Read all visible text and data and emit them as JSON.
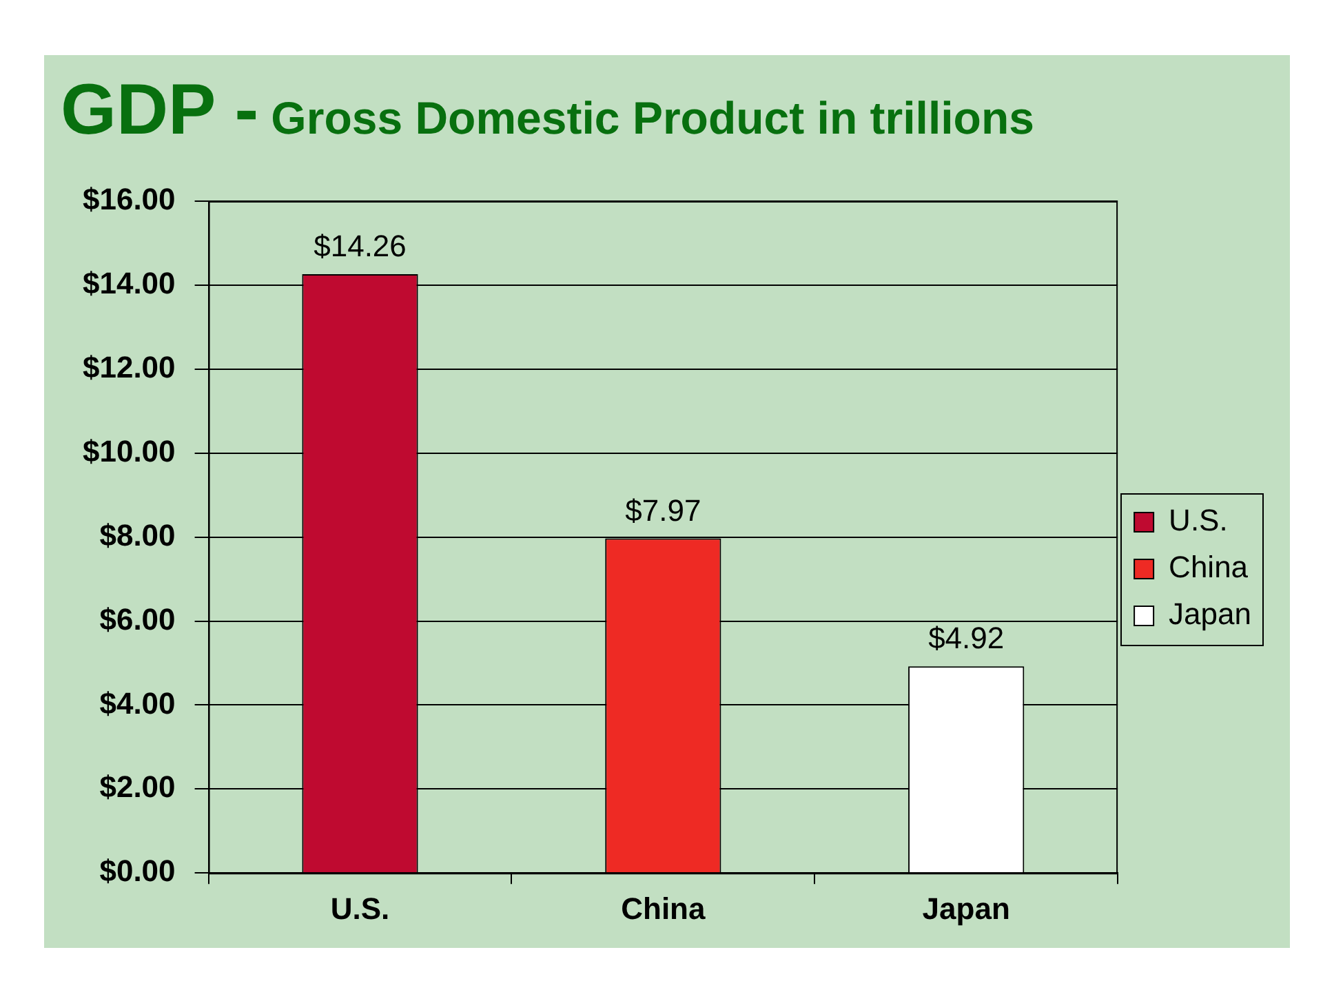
{
  "chart_data": {
    "type": "bar",
    "title": "GDP - Gross Domestic Product in trillions",
    "categories": [
      "U.S.",
      "China",
      "Japan"
    ],
    "series": [
      {
        "name": "U.S.",
        "color": "#bf0a30",
        "values": [
          14.26,
          null,
          null
        ],
        "value_labels": [
          "$14.26",
          null,
          null
        ]
      },
      {
        "name": "China",
        "color": "#ee2a24",
        "values": [
          null,
          7.97,
          null
        ],
        "value_labels": [
          null,
          "$7.97",
          null
        ]
      },
      {
        "name": "Japan",
        "color": "#ffffff",
        "values": [
          null,
          null,
          4.92
        ],
        "value_labels": [
          null,
          null,
          "$4.92"
        ]
      }
    ],
    "ylim": [
      0,
      16
    ],
    "yticks": [
      {
        "value": 0,
        "label": "$0.00"
      },
      {
        "value": 2,
        "label": "$2.00"
      },
      {
        "value": 4,
        "label": "$4.00"
      },
      {
        "value": 6,
        "label": "$6.00"
      },
      {
        "value": 8,
        "label": "$8.00"
      },
      {
        "value": 10,
        "label": "$10.00"
      },
      {
        "value": 12,
        "label": "$12.00"
      },
      {
        "value": 14,
        "label": "$14.00"
      },
      {
        "value": 16,
        "label": "$16.00"
      }
    ],
    "grid": "y",
    "legend": "right"
  }
}
